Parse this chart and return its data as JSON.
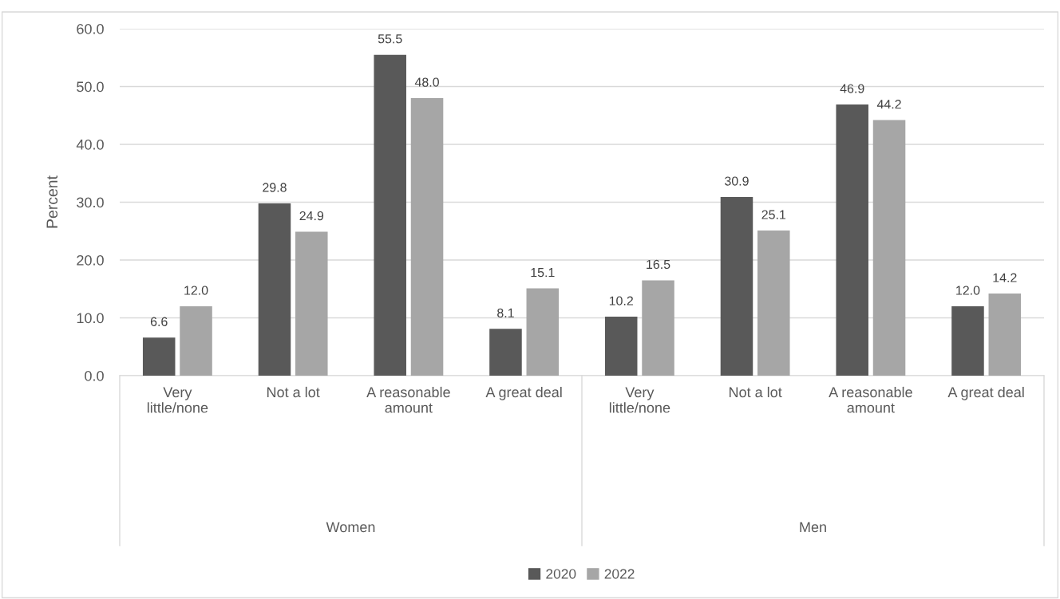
{
  "chart_data": {
    "type": "bar",
    "ylabel": "Percent",
    "categories": [
      "Very little/none",
      "Not a lot",
      "A reasonable amount",
      "A great deal",
      "Very little/none",
      "Not a lot",
      "A reasonable amount",
      "A great deal"
    ],
    "series": [
      {
        "name": "2020",
        "color": "#595959",
        "values": [
          6.6,
          29.8,
          55.5,
          8.1,
          10.2,
          30.9,
          46.9,
          12.0
        ],
        "value_labels": [
          "6.6",
          "29.8",
          "55.5",
          "8.1",
          "10.2",
          "30.9",
          "46.9",
          "12.0"
        ]
      },
      {
        "name": "2022",
        "color": "#a6a6a6",
        "values": [
          12.0,
          24.9,
          48.0,
          15.1,
          16.5,
          25.1,
          44.2,
          14.2
        ],
        "value_labels": [
          "12.0",
          "24.9",
          "48.0",
          "15.1",
          "16.5",
          "25.1",
          "44.2",
          "14.2"
        ]
      }
    ],
    "annotations": [
      "Women",
      "Men"
    ],
    "ylim": [
      0,
      60
    ],
    "yticks": [
      {
        "value": 0,
        "label": "0.0"
      },
      {
        "value": 10,
        "label": "10.0"
      },
      {
        "value": 20,
        "label": "20.0"
      },
      {
        "value": 30,
        "label": "30.0"
      },
      {
        "value": 40,
        "label": "40.0"
      },
      {
        "value": 50,
        "label": "50.0"
      },
      {
        "value": 60,
        "label": "60.0"
      }
    ],
    "grid": "y",
    "legend": "bottom"
  }
}
